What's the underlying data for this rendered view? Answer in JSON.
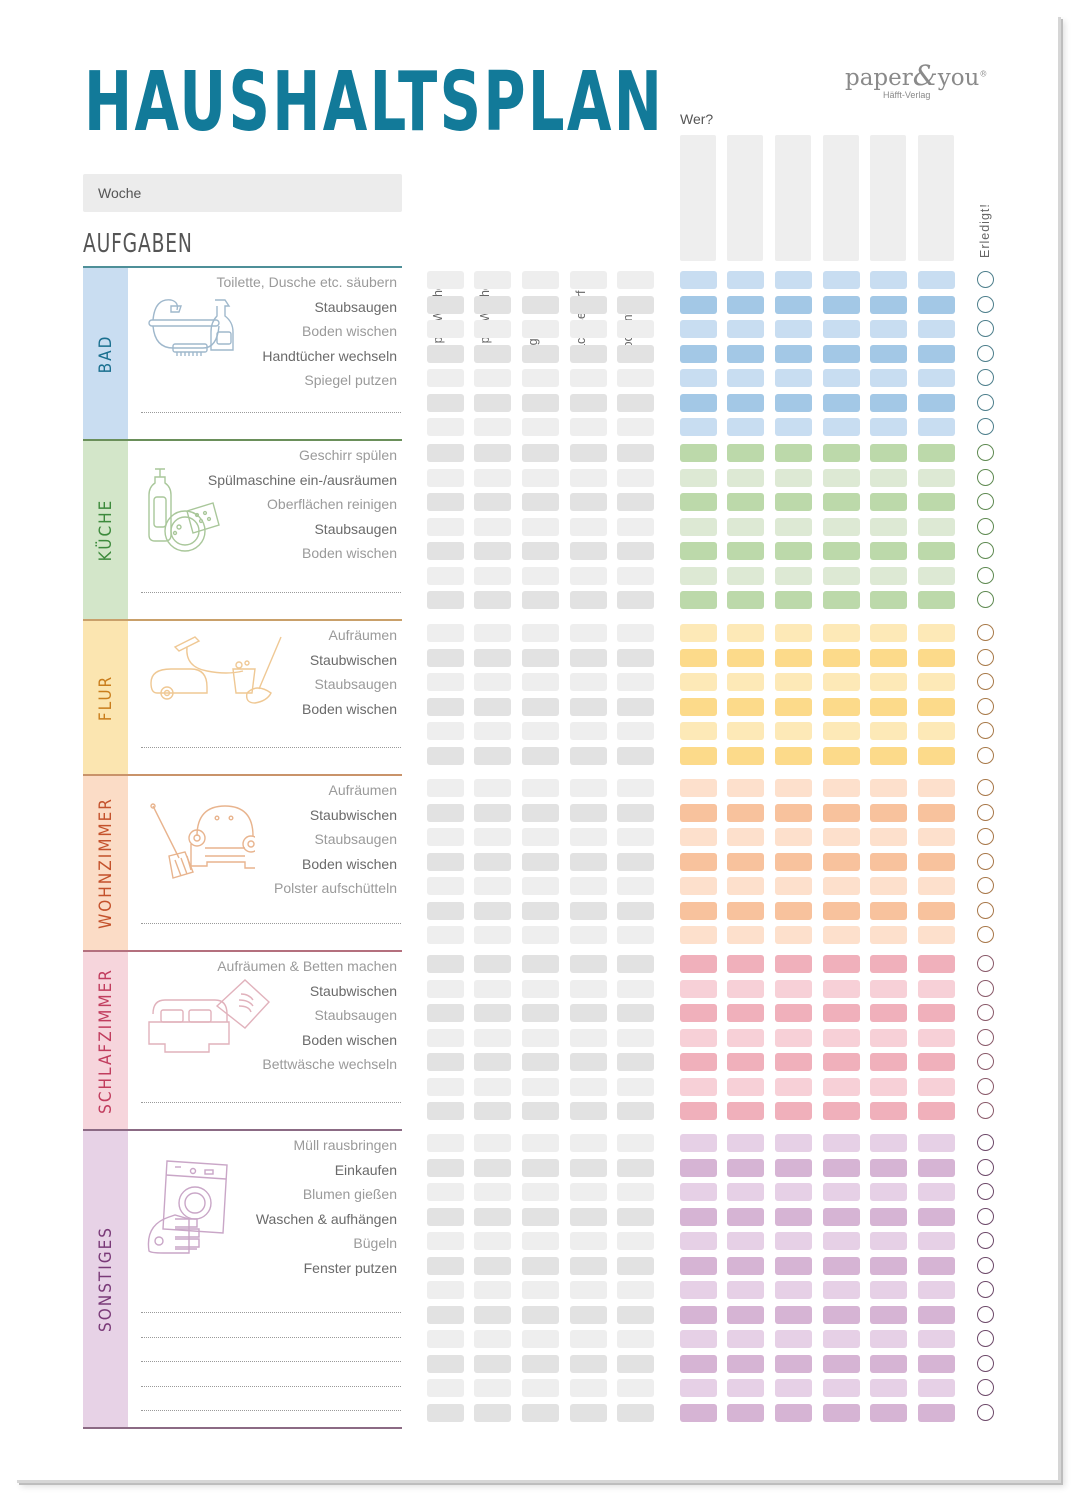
{
  "header": {
    "title": "HAUSHALTSPLAN",
    "brand": {
      "name_left": "paper",
      "amp": "&",
      "name_right": "you",
      "registered": "®",
      "subtitle": "Häfft-Verlag"
    },
    "woche_label": "Woche",
    "aufgaben_label": "AUFGABEN",
    "wer_label": "Wer?",
    "frequency_columns": [
      "1x pro Woche",
      "2x pro Woche",
      "Täglich",
      "Nach Bedarf",
      "Wochentag"
    ],
    "erledigt_label": "Erledigt!",
    "person_columns": 6
  },
  "colors": {
    "title": "#127a99",
    "freq_light": "#eeeeee",
    "freq_dark": "#e2e2e2"
  },
  "sections": [
    {
      "name": "BAD",
      "label_color": "#1a6f8f",
      "band": "#c9ddf1",
      "line": "#4e8f98",
      "light": "#c8ddf1",
      "dark": "#a3c8e6",
      "circle": "#4e7f8c",
      "tasks": [
        "Toilette, Dusche etc. säubern",
        "Staubsaugen",
        "Boden wischen",
        "Handtücher wechseln",
        "Spiegel putzen"
      ],
      "rows": 7,
      "blank_lines": 1,
      "icon": "bathtub-icon"
    },
    {
      "name": "KÜCHE",
      "label_color": "#3d8a3c",
      "band": "#d3e6c9",
      "line": "#6a8f5a",
      "light": "#dde9d4",
      "dark": "#bcd9aa",
      "circle": "#5f8a52",
      "tasks": [
        "Geschirr spülen",
        "Spülmaschine ein-/ausräumen",
        "Oberflächen reinigen",
        "Staubsaugen",
        "Boden wischen"
      ],
      "rows": 7,
      "blank_lines": 1,
      "icon": "dish-soap-icon"
    },
    {
      "name": "FLUR",
      "label_color": "#c97d1c",
      "band": "#fbe5b0",
      "line": "#c9a06a",
      "light": "#fde9b7",
      "dark": "#fcda8a",
      "circle": "#a87a4a",
      "tasks": [
        "Aufräumen",
        "Staubwischen",
        "Staubsaugen",
        "Boden wischen"
      ],
      "rows": 6,
      "blank_lines": 1,
      "icon": "vacuum-mop-icon"
    },
    {
      "name": "WOHNZIMMER",
      "label_color": "#c4522c",
      "band": "#fbdcc6",
      "line": "#c9936a",
      "light": "#fde0cc",
      "dark": "#f8c29d",
      "circle": "#a8784a",
      "tasks": [
        "Aufräumen",
        "Staubwischen",
        "Staubsaugen",
        "Boden wischen",
        "Polster aufschütteln"
      ],
      "rows": 7,
      "blank_lines": 1,
      "icon": "armchair-broom-icon"
    },
    {
      "name": "SCHLAFZIMMER",
      "label_color": "#c13d5e",
      "band": "#f6d5dc",
      "line": "#b4707e",
      "light": "#f7d0d7",
      "dark": "#f0b0bb",
      "circle": "#8a5a6a",
      "tasks": [
        "Aufräumen & Betten machen",
        "Staubwischen",
        "Staubsaugen",
        "Boden wischen",
        "Bettwäsche wechseln"
      ],
      "rows": 7,
      "blank_lines": 1,
      "icon": "bed-pillow-icon"
    },
    {
      "name": "SONSTIGES",
      "label_color": "#7a3a78",
      "band": "#e7d2e6",
      "line": "#8b6a84",
      "light": "#e6d0e6",
      "dark": "#d6b4d4",
      "circle": "#6e4a6a",
      "tasks": [
        "Müll rausbringen",
        "Einkaufen",
        "Blumen gießen",
        "Waschen & aufhängen",
        "Bügeln",
        "Fenster putzen"
      ],
      "rows": 12,
      "blank_lines": 5,
      "icon": "washing-machine-iron-icon"
    }
  ]
}
